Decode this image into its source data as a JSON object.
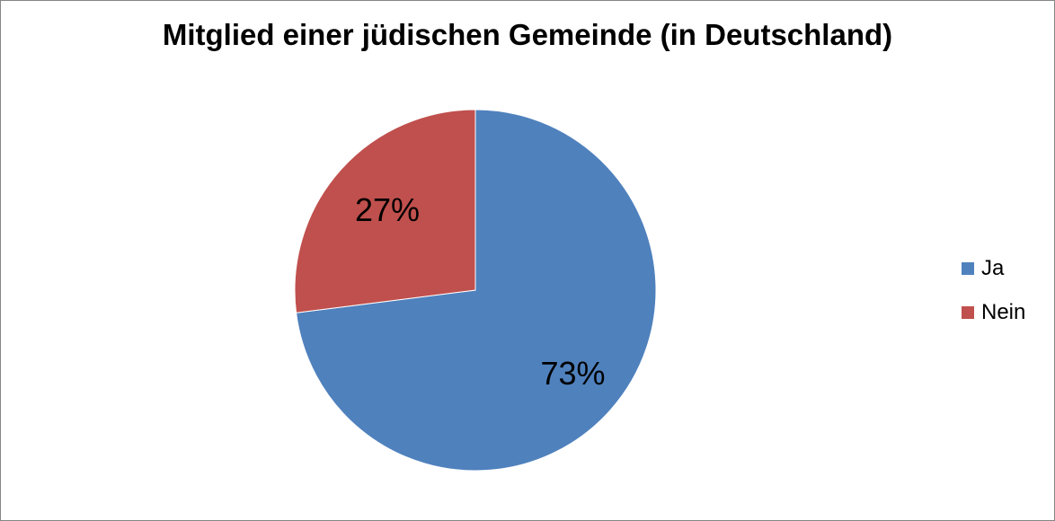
{
  "chart_data": {
    "type": "pie",
    "title": "Mitglied einer jüdischen Gemeinde (in Deutschland)",
    "categories": [
      "Ja",
      "Nein"
    ],
    "values": [
      73,
      27
    ],
    "labels": [
      "73%",
      "27%"
    ],
    "colors": [
      "#4f81bd",
      "#c0504d"
    ],
    "legend": "right"
  }
}
